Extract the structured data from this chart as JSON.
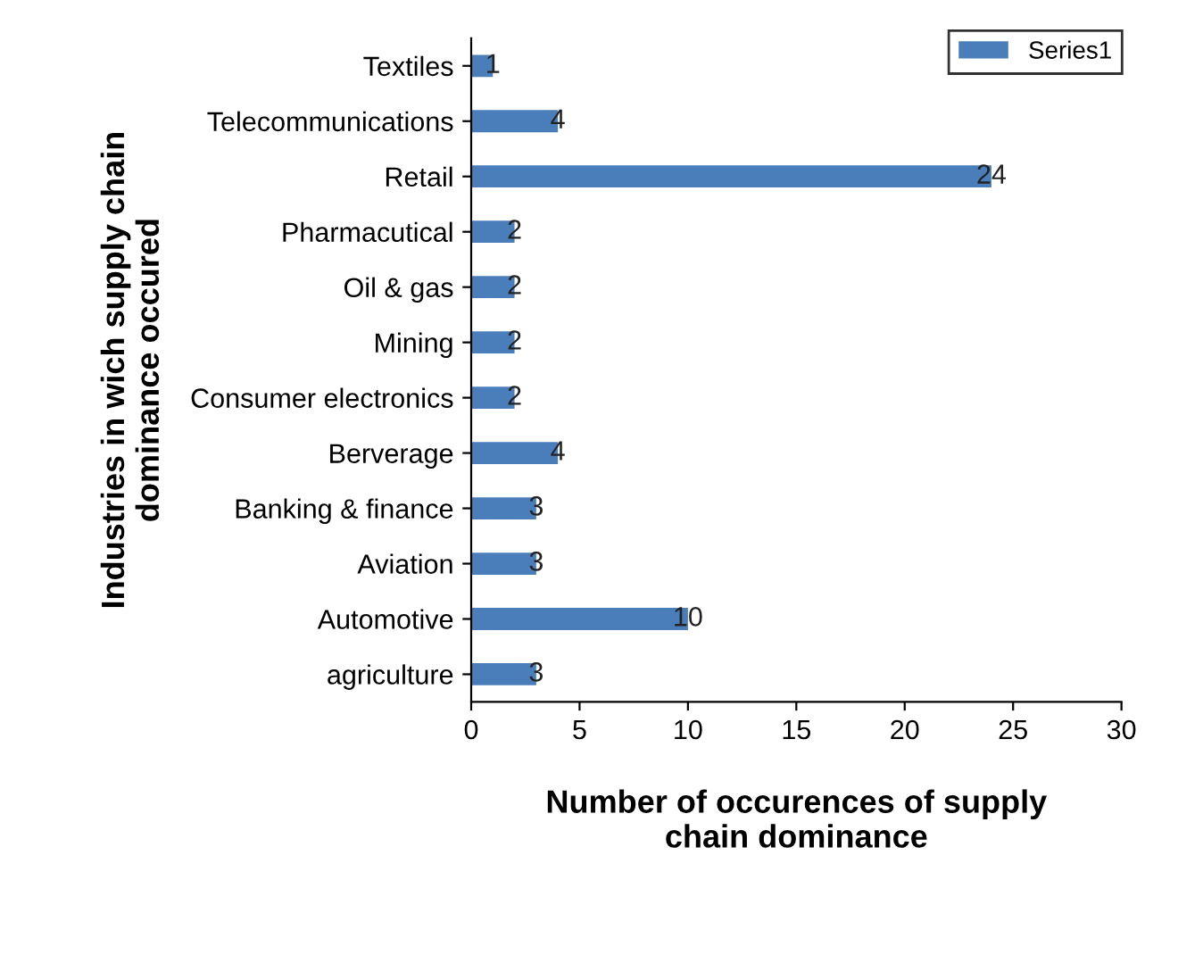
{
  "chart_data": {
    "type": "bar",
    "orientation": "horizontal",
    "xlabel": "Number of occurences of supply\nchain dominance",
    "ylabel": "Industries in wich supply chain\ndominance occured",
    "categories": [
      "Textiles",
      "Telecommunications",
      "Retail",
      "Pharmacutical",
      "Oil & gas",
      "Mining",
      "Consumer electronics",
      "Berverage",
      "Banking & finance",
      "Aviation",
      "Automotive",
      "agriculture"
    ],
    "series": [
      {
        "name": "Series1",
        "color": "#4a7ebb",
        "values": [
          1,
          4,
          24,
          2,
          2,
          2,
          2,
          4,
          3,
          3,
          10,
          3
        ]
      }
    ],
    "xlim": [
      0,
      30
    ],
    "xticks": [
      0,
      5,
      10,
      15,
      20,
      25,
      30
    ],
    "data_labels": true,
    "grid": false,
    "legend": "top right"
  }
}
